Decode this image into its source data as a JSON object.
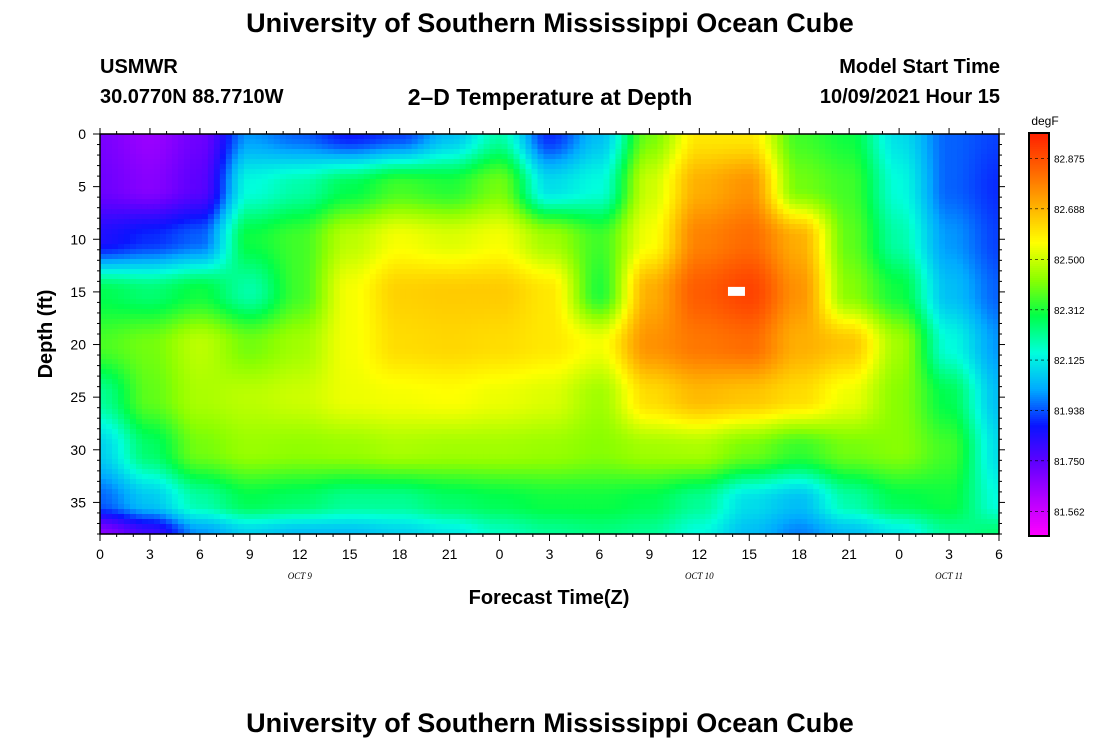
{
  "header": {
    "title": "University of Southern Mississippi Ocean Cube",
    "station": "USMWR",
    "coords": "30.0770N  88.7710W",
    "plot_title": "2–D Temperature at Depth",
    "model_label": "Model Start Time",
    "model_time": "10/09/2021 Hour 15"
  },
  "footer": {
    "title": "University of Southern Mississippi Ocean Cube"
  },
  "chart_data": {
    "type": "heatmap",
    "xlabel": "Forecast Time(Z)",
    "ylabel": "Depth (ft)",
    "x_hours": [
      0,
      39
    ],
    "x_tick_labels": [
      "0",
      "3",
      "6",
      "9",
      "12",
      "15",
      "18",
      "21",
      "0",
      "3",
      "6",
      "9",
      "12",
      "15",
      "18",
      "21",
      "0",
      "3",
      "6"
    ],
    "date_labels": [
      {
        "label": "OCT 9",
        "hour": 12
      },
      {
        "label": "OCT 10",
        "hour": 36
      },
      {
        "label": "OCT 11",
        "hour": 51
      }
    ],
    "ylim": [
      0,
      38
    ],
    "y_ticks": [
      0,
      5,
      10,
      15,
      20,
      25,
      30,
      35
    ],
    "colorbar": {
      "unit": "degF",
      "min": 81.47,
      "max": 82.97,
      "tick_labels": [
        "82.875",
        "82.688",
        "82.500",
        "82.312",
        "82.125",
        "81.938",
        "81.750",
        "81.562"
      ],
      "tick_values": [
        82.875,
        82.688,
        82.5,
        82.312,
        82.125,
        81.938,
        81.75,
        81.562
      ],
      "colors": [
        "#ff00ff",
        "#b400ff",
        "#6000ff",
        "#0a14ff",
        "#00aaff",
        "#00ffdc",
        "#00ff4a",
        "#8cff00",
        "#ffff00",
        "#ffb000",
        "#ff6400",
        "#ff2000"
      ]
    },
    "hours": [
      0,
      3,
      6,
      9,
      12,
      15,
      18,
      21,
      24,
      27,
      30,
      33,
      36,
      39,
      42,
      45,
      48,
      51,
      54
    ],
    "depths": [
      0,
      5,
      10,
      15,
      20,
      25,
      30,
      35,
      38
    ],
    "values": [
      [
        81.7,
        81.65,
        81.72,
        82.0,
        81.95,
        81.88,
        81.92,
        82.05,
        82.2,
        81.9,
        82.05,
        82.4,
        82.6,
        82.6,
        82.35,
        82.3,
        82.1,
        81.95,
        81.92
      ],
      [
        81.72,
        81.68,
        81.75,
        82.15,
        82.2,
        82.28,
        82.35,
        82.32,
        82.4,
        82.1,
        82.15,
        82.5,
        82.7,
        82.75,
        82.4,
        82.35,
        82.15,
        81.95,
        81.9
      ],
      [
        81.85,
        81.9,
        81.95,
        82.3,
        82.35,
        82.48,
        82.55,
        82.52,
        82.55,
        82.45,
        82.35,
        82.55,
        82.78,
        82.82,
        82.7,
        82.38,
        82.2,
        82.0,
        81.92
      ],
      [
        82.28,
        82.25,
        82.3,
        82.2,
        82.35,
        82.55,
        82.64,
        82.65,
        82.65,
        82.6,
        82.32,
        82.7,
        82.85,
        82.9,
        82.75,
        82.42,
        82.3,
        82.05,
        81.95
      ],
      [
        82.36,
        82.4,
        82.48,
        82.4,
        82.45,
        82.55,
        82.62,
        82.63,
        82.62,
        82.6,
        82.55,
        82.75,
        82.8,
        82.82,
        82.7,
        82.66,
        82.45,
        82.15,
        82.0
      ],
      [
        82.22,
        82.38,
        82.46,
        82.48,
        82.5,
        82.54,
        82.55,
        82.56,
        82.54,
        82.52,
        82.45,
        82.62,
        82.68,
        82.66,
        82.62,
        82.54,
        82.42,
        82.28,
        82.05
      ],
      [
        82.08,
        82.26,
        82.4,
        82.44,
        82.43,
        82.44,
        82.46,
        82.45,
        82.45,
        82.44,
        82.42,
        82.45,
        82.46,
        82.4,
        82.34,
        82.4,
        82.42,
        82.35,
        82.1
      ],
      [
        81.95,
        82.06,
        82.2,
        82.28,
        82.26,
        82.22,
        82.22,
        82.26,
        82.28,
        82.3,
        82.3,
        82.28,
        82.22,
        82.1,
        82.05,
        82.2,
        82.28,
        82.3,
        82.15
      ],
      [
        81.68,
        81.8,
        82.0,
        82.08,
        82.05,
        82.05,
        82.08,
        82.12,
        82.18,
        82.22,
        82.24,
        82.22,
        82.15,
        82.05,
        81.98,
        82.05,
        82.12,
        82.22,
        82.25
      ]
    ],
    "missing_marker": {
      "hour": 38.2,
      "depth": 15
    }
  }
}
